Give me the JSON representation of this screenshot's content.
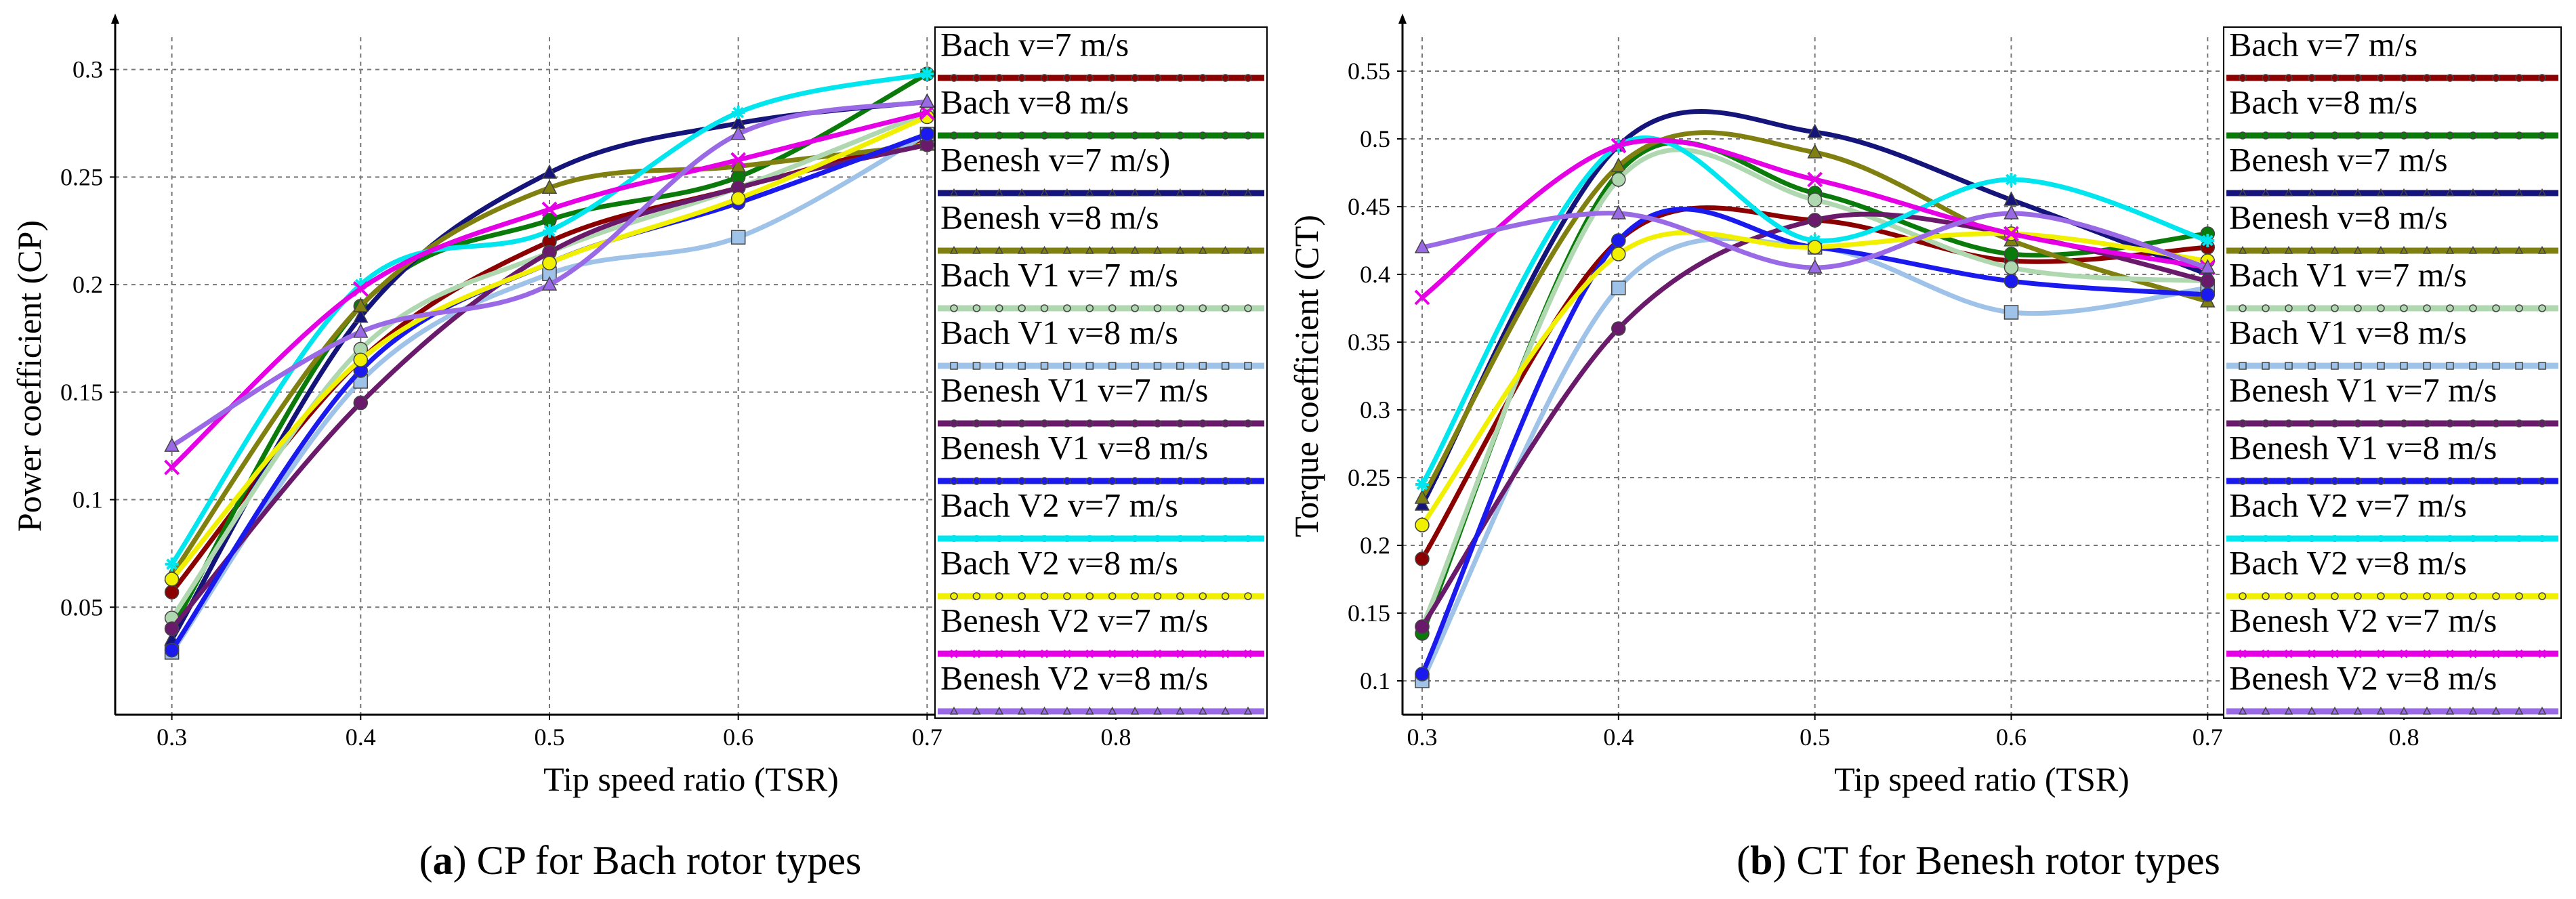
{
  "chart_data": [
    {
      "id": "a",
      "type": "line",
      "caption_label": "a",
      "caption_text": "CP for Bach rotor types",
      "xlabel": "Tip speed ratio (TSR)",
      "ylabel": "Power coefficient (CP)",
      "xlim": [
        0.27,
        0.88
      ],
      "ylim": [
        0.0,
        0.315
      ],
      "x_ticks": [
        0.3,
        0.4,
        0.5,
        0.6,
        0.7,
        0.8
      ],
      "x_tick_labels": [
        "0.3",
        "0.4",
        "0.5",
        "0.6",
        "0.7",
        "0.8"
      ],
      "y_ticks": [
        0.05,
        0.1,
        0.15,
        0.2,
        0.25,
        0.3
      ],
      "y_tick_labels": [
        "0.05",
        "0.1",
        "0.15",
        "0.2",
        "0.25",
        "0.3"
      ],
      "grid": true,
      "x": [
        0.3,
        0.4,
        0.5,
        0.6,
        0.7
      ],
      "series": [
        {
          "name": "Bach v=7 m/s",
          "color": "#8b0000",
          "marker": "circle",
          "values": [
            0.057,
            0.165,
            0.22,
            0.245,
            0.268
          ]
        },
        {
          "name": "Bach v=8 m/s",
          "color": "#0a7a0a",
          "marker": "circle",
          "values": [
            0.04,
            0.19,
            0.23,
            0.25,
            0.298
          ]
        },
        {
          "name": "Benesh v=7 m/s)",
          "color": "#14147a",
          "marker": "triangle",
          "values": [
            0.035,
            0.185,
            0.252,
            0.275,
            0.285
          ]
        },
        {
          "name": "Benesh v=8 m/s",
          "color": "#808010",
          "marker": "triangle",
          "values": [
            0.065,
            0.19,
            0.245,
            0.255,
            0.265
          ]
        },
        {
          "name": "Bach V1 v=7 m/s",
          "color": "#b0d8b0",
          "marker": "circle",
          "values": [
            0.045,
            0.17,
            0.215,
            0.245,
            0.28
          ]
        },
        {
          "name": "Bach V1 v=8 m/s",
          "color": "#9ec2e8",
          "marker": "square",
          "values": [
            0.029,
            0.155,
            0.205,
            0.222,
            0.27
          ]
        },
        {
          "name": "Benesh V1 v=7 m/s",
          "color": "#6a1a6a",
          "marker": "circle",
          "values": [
            0.04,
            0.145,
            0.215,
            0.245,
            0.265
          ]
        },
        {
          "name": "Benesh V1 v=8 m/s",
          "color": "#1a1aee",
          "marker": "circle",
          "values": [
            0.03,
            0.16,
            0.21,
            0.238,
            0.27
          ]
        },
        {
          "name": "Bach V2 v=7 m/s",
          "color": "#00e5ee",
          "marker": "star",
          "values": [
            0.07,
            0.2,
            0.225,
            0.28,
            0.298
          ]
        },
        {
          "name": "Bach V2 v=8 m/s",
          "color": "#f0f000",
          "marker": "circle",
          "values": [
            0.063,
            0.165,
            0.21,
            0.24,
            0.278
          ]
        },
        {
          "name": "Benesh V2 v=7 m/s",
          "color": "#e600e6",
          "marker": "x",
          "values": [
            0.115,
            0.198,
            0.235,
            0.258,
            0.28
          ]
        },
        {
          "name": "Benesh V2 v=8 m/s",
          "color": "#9a6ae6",
          "marker": "triangle",
          "values": [
            0.125,
            0.178,
            0.2,
            0.27,
            0.285
          ]
        }
      ]
    },
    {
      "id": "b",
      "type": "line",
      "caption_label": "b",
      "caption_text": "CT for Benesh rotor types",
      "xlabel": "Tip speed ratio (TSR)",
      "ylabel": "Torque coefficient (CT)",
      "xlim": [
        0.29,
        0.88
      ],
      "ylim": [
        0.075,
        0.575
      ],
      "x_ticks": [
        0.3,
        0.4,
        0.5,
        0.6,
        0.7,
        0.8
      ],
      "x_tick_labels": [
        "0.3",
        "0.4",
        "0.5",
        "0.6",
        "0.7",
        "0.8"
      ],
      "y_ticks": [
        0.1,
        0.15,
        0.2,
        0.25,
        0.3,
        0.35,
        0.4,
        0.45,
        0.5,
        0.55
      ],
      "y_tick_labels": [
        "0.1",
        "0.15",
        "0.2",
        "0.25",
        "0.3",
        "0.35",
        "0.4",
        "0.45",
        "0.5",
        "0.55"
      ],
      "grid": true,
      "x": [
        0.3,
        0.4,
        0.5,
        0.6,
        0.7
      ],
      "series": [
        {
          "name": "Bach v=7 m/s",
          "color": "#8b0000",
          "marker": "circle",
          "values": [
            0.19,
            0.425,
            0.44,
            0.41,
            0.42
          ]
        },
        {
          "name": "Bach v=8 m/s",
          "color": "#0a7a0a",
          "marker": "circle",
          "values": [
            0.135,
            0.475,
            0.46,
            0.415,
            0.43
          ]
        },
        {
          "name": "Benesh v=7 m/s",
          "color": "#14147a",
          "marker": "triangle",
          "values": [
            0.23,
            0.495,
            0.505,
            0.455,
            0.4
          ]
        },
        {
          "name": "Benesh v=8 m/s",
          "color": "#808010",
          "marker": "triangle",
          "values": [
            0.235,
            0.48,
            0.49,
            0.425,
            0.38
          ]
        },
        {
          "name": "Bach V1 v=7 m/s",
          "color": "#b0d8b0",
          "marker": "circle",
          "values": [
            0.14,
            0.47,
            0.455,
            0.405,
            0.395
          ]
        },
        {
          "name": "Bach V1 v=8 m/s",
          "color": "#9ec2e8",
          "marker": "square",
          "values": [
            0.1,
            0.39,
            0.42,
            0.372,
            0.39
          ]
        },
        {
          "name": "Benesh V1 v=7 m/s",
          "color": "#6a1a6a",
          "marker": "circle",
          "values": [
            0.14,
            0.36,
            0.44,
            0.43,
            0.395
          ]
        },
        {
          "name": "Benesh V1 v=8 m/s",
          "color": "#1a1aee",
          "marker": "circle",
          "values": [
            0.105,
            0.425,
            0.42,
            0.395,
            0.385
          ]
        },
        {
          "name": "Bach V2 v=7 m/s",
          "color": "#00e5ee",
          "marker": "star",
          "values": [
            0.245,
            0.495,
            0.425,
            0.47,
            0.425
          ]
        },
        {
          "name": "Bach V2 v=8 m/s",
          "color": "#f0f000",
          "marker": "circle",
          "values": [
            0.215,
            0.415,
            0.42,
            0.43,
            0.41
          ]
        },
        {
          "name": "Benesh V2 v=7 m/s",
          "color": "#e600e6",
          "marker": "x",
          "values": [
            0.383,
            0.495,
            0.47,
            0.43,
            0.405
          ]
        },
        {
          "name": "Benesh V2 v=8 m/s",
          "color": "#9a6ae6",
          "marker": "triangle",
          "values": [
            0.42,
            0.445,
            0.405,
            0.445,
            0.405
          ]
        }
      ]
    }
  ]
}
